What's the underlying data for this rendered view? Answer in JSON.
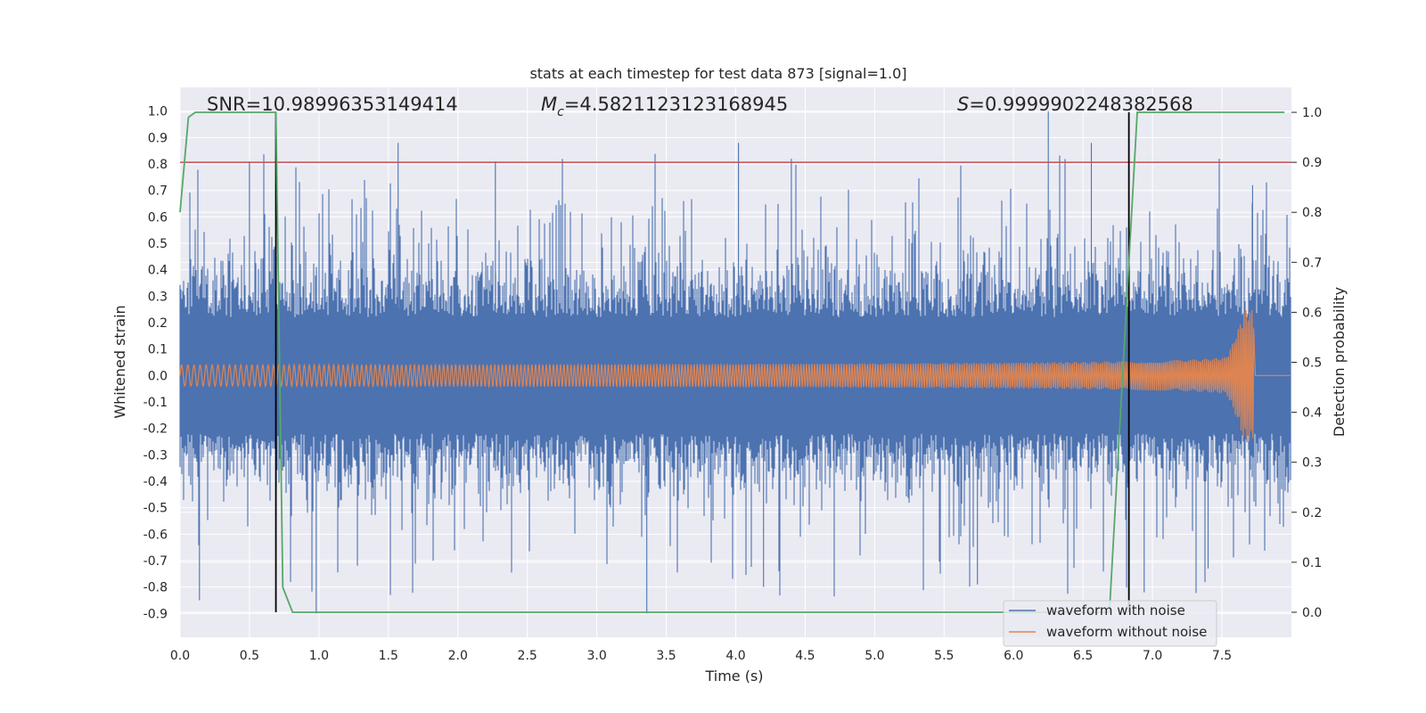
{
  "chart_data": {
    "type": "line",
    "title": "stats at each timestep for test data 873 [signal=1.0]",
    "xlabel": "Time (s)",
    "ylabel_left": "Whitened strain",
    "ylabel_right": "Detection probability",
    "xlim": [
      0.0,
      8.0
    ],
    "ylim_left": [
      -0.99,
      1.09
    ],
    "ylim_right": [
      -0.05,
      1.05
    ],
    "x_ticks": [
      "0.0",
      "0.5",
      "1.0",
      "1.5",
      "2.0",
      "2.5",
      "3.0",
      "3.5",
      "4.0",
      "4.5",
      "5.0",
      "5.5",
      "6.0",
      "6.5",
      "7.0",
      "7.5"
    ],
    "y_left_ticks": [
      "1.0",
      "0.9",
      "0.8",
      "0.7",
      "0.6",
      "0.5",
      "0.4",
      "0.3",
      "0.2",
      "0.1",
      "0.0",
      "-0.1",
      "-0.2",
      "-0.3",
      "-0.4",
      "-0.5",
      "-0.6",
      "-0.7",
      "-0.8",
      "-0.9"
    ],
    "y_right_ticks": [
      "1.0",
      "0.9",
      "0.8",
      "0.7",
      "0.6",
      "0.5",
      "0.4",
      "0.3",
      "0.2",
      "0.1",
      "0.0"
    ],
    "annotations": {
      "snr": "SNR=10.98996353149414",
      "mc_symbol": "M",
      "mc_sub": "c",
      "mc_value": "=4.5821123123168945",
      "s_symbol": "S",
      "s_value": "=0.9999902248382568"
    },
    "threshold_probability": 0.9,
    "vertical_markers_s": [
      0.69,
      6.83
    ],
    "detection_probability": {
      "name": "detection probability",
      "x": [
        0.0,
        0.06,
        0.11,
        0.69,
        0.74,
        0.81,
        6.69,
        6.79,
        6.89,
        7.95
      ],
      "y": [
        0.8,
        0.99,
        1.0,
        1.0,
        0.05,
        0.0,
        0.0,
        0.5,
        1.0,
        1.0
      ]
    },
    "series": [
      {
        "name": "waveform with noise",
        "envelope": "noise amplitude roughly ±0.45, spikes up to 1.0 and down to -0.9",
        "seed": 873
      },
      {
        "name": "waveform without noise",
        "envelope": "chirp amplitude 0.02 at t=0 rising to 0.25 at t=7.73, zero after merger",
        "merger_time_s": 7.73
      }
    ],
    "legend": {
      "placement": "lower-right",
      "entries": [
        "waveform with noise",
        "waveform without noise"
      ]
    },
    "colors": {
      "noise": "#4c72b0",
      "signal": "#dd8452",
      "probability": "#55a868",
      "threshold": "#c44e52",
      "marker": "#000000",
      "axes_bg": "#eaeaf2",
      "grid": "#ffffff"
    }
  }
}
